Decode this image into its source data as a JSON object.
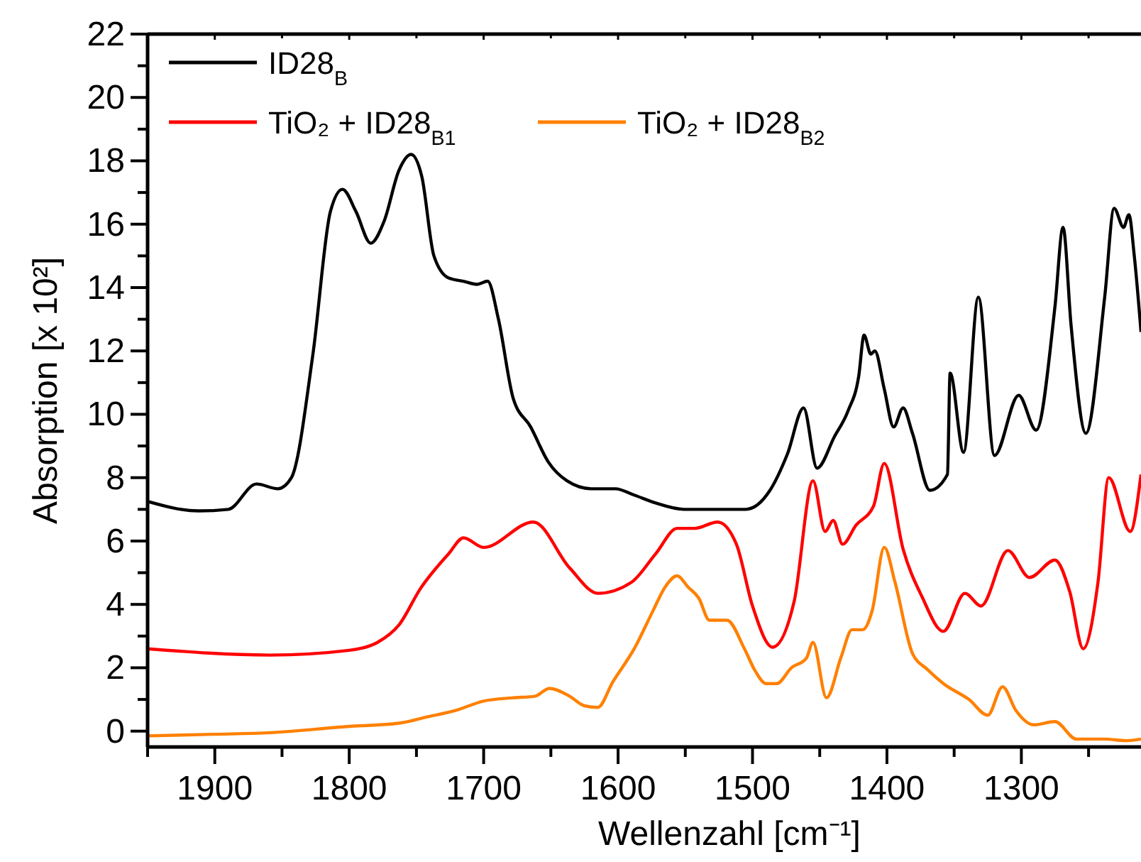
{
  "chart_data": {
    "type": "line",
    "xlabel": "Wellenzahl [cm⁻¹]",
    "ylabel": "Absorption [x 10²]",
    "xlim": [
      1950,
      1211
    ],
    "ylim": [
      -0.5,
      22
    ],
    "xticks": [
      {
        "value": 1950,
        "label": null
      },
      1900,
      {
        "value": 1850,
        "label": null
      },
      1800,
      {
        "value": 1750,
        "label": null
      },
      1700,
      {
        "value": 1650,
        "label": null
      },
      1600,
      {
        "value": 1550,
        "label": null
      },
      1500,
      {
        "value": 1450,
        "label": null
      },
      1400,
      {
        "value": 1350,
        "label": null
      },
      1300,
      {
        "value": 1250,
        "label": null
      }
    ],
    "yticks": [
      0,
      {
        "value": 1,
        "label": null
      },
      2,
      {
        "value": 3,
        "label": null
      },
      4,
      {
        "value": 5,
        "label": null
      },
      6,
      {
        "value": 7,
        "label": null
      },
      8,
      {
        "value": 9,
        "label": null
      },
      10,
      {
        "value": 11,
        "label": null
      },
      12,
      {
        "value": 13,
        "label": null
      },
      14,
      {
        "value": 15,
        "label": null
      },
      16,
      {
        "value": 17,
        "label": null
      },
      18,
      {
        "value": 19,
        "label": null
      },
      20,
      {
        "value": 21,
        "label": null
      },
      22
    ],
    "grid": false,
    "legend": "top left",
    "line_style": "solid",
    "marker": "none",
    "series": [
      {
        "name": "ID28$_{B}$",
        "color": "#000000",
        "x": [
          1950,
          1912,
          1890,
          1869,
          1853,
          1843,
          1827,
          1814,
          1805,
          1795,
          1784,
          1774,
          1763,
          1754,
          1746,
          1737,
          1726,
          1715,
          1705,
          1697,
          1689,
          1678,
          1665,
          1652,
          1638,
          1620,
          1602,
          1588,
          1572,
          1551,
          1524,
          1505,
          1487,
          1474,
          1462,
          1452,
          1439,
          1429,
          1421,
          1417,
          1412,
          1409,
          1402,
          1395,
          1388,
          1381,
          1368,
          1355,
          1353,
          1343,
          1332,
          1320,
          1302,
          1289,
          1275,
          1269,
          1263,
          1252,
          1238,
          1231,
          1224,
          1220,
          1216,
          1211
        ],
        "values": [
          7.25,
          6.95,
          7.0,
          7.8,
          7.65,
          8.0,
          11.9,
          16.4,
          17.1,
          16.4,
          15.4,
          16.1,
          17.7,
          18.2,
          17.5,
          15.0,
          14.3,
          14.2,
          14.1,
          14.2,
          13.0,
          10.5,
          9.6,
          8.5,
          7.9,
          7.65,
          7.65,
          7.45,
          7.2,
          7.0,
          7.0,
          7.0,
          7.6,
          8.75,
          10.2,
          8.3,
          9.3,
          10.1,
          11.2,
          12.5,
          11.9,
          12.0,
          10.8,
          9.6,
          10.2,
          9.4,
          7.6,
          8.1,
          11.3,
          8.8,
          13.7,
          8.7,
          10.6,
          9.5,
          13.4,
          15.9,
          12.8,
          9.4,
          13.7,
          16.5,
          15.9,
          16.3,
          15.0,
          12.6
        ]
      },
      {
        "name": "TiO₂ + ID28$_{B1}$",
        "color": "#ff0000",
        "x": [
          1950,
          1859,
          1800,
          1779,
          1763,
          1747,
          1726,
          1715,
          1700,
          1663,
          1636,
          1615,
          1590,
          1572,
          1556,
          1543,
          1526,
          1512,
          1500,
          1485,
          1469,
          1455,
          1446,
          1440,
          1433,
          1423,
          1410,
          1402,
          1388,
          1374,
          1358,
          1342,
          1330,
          1310,
          1294,
          1275,
          1264,
          1254,
          1243,
          1235,
          1219,
          1211
        ],
        "values": [
          2.6,
          2.4,
          2.55,
          2.8,
          3.35,
          4.5,
          5.6,
          6.1,
          5.8,
          6.6,
          5.15,
          4.35,
          4.7,
          5.6,
          6.4,
          6.4,
          6.6,
          5.9,
          3.95,
          2.65,
          4.1,
          7.9,
          6.3,
          6.65,
          5.9,
          6.5,
          7.1,
          8.45,
          5.75,
          4.25,
          3.15,
          4.35,
          3.95,
          5.7,
          4.85,
          5.4,
          4.4,
          2.6,
          4.7,
          8.0,
          6.3,
          8.1
        ]
      },
      {
        "name": "TiO₂ + ID28$_{B2}$",
        "color": "#ff8000",
        "x": [
          1950,
          1901,
          1859,
          1800,
          1763,
          1742,
          1721,
          1700,
          1679,
          1662,
          1651,
          1636,
          1625,
          1615,
          1604,
          1588,
          1574,
          1565,
          1556,
          1548,
          1540,
          1532,
          1519,
          1506,
          1498,
          1490,
          1482,
          1471,
          1460,
          1455,
          1445,
          1434,
          1426,
          1418,
          1411,
          1402,
          1394,
          1381,
          1370,
          1358,
          1339,
          1325,
          1314,
          1304,
          1291,
          1275,
          1259,
          1238,
          1222,
          1211
        ],
        "values": [
          -0.15,
          -0.1,
          -0.05,
          0.15,
          0.25,
          0.45,
          0.65,
          0.95,
          1.05,
          1.1,
          1.35,
          1.1,
          0.8,
          0.75,
          1.55,
          2.6,
          3.8,
          4.55,
          4.9,
          4.55,
          4.2,
          3.5,
          3.5,
          2.6,
          1.9,
          1.5,
          1.5,
          2.0,
          2.3,
          2.8,
          1.05,
          2.35,
          3.2,
          3.2,
          3.8,
          5.8,
          4.7,
          2.45,
          1.95,
          1.5,
          1.0,
          0.5,
          1.4,
          0.65,
          0.2,
          0.3,
          -0.25,
          -0.25,
          -0.3,
          -0.25
        ]
      }
    ]
  }
}
